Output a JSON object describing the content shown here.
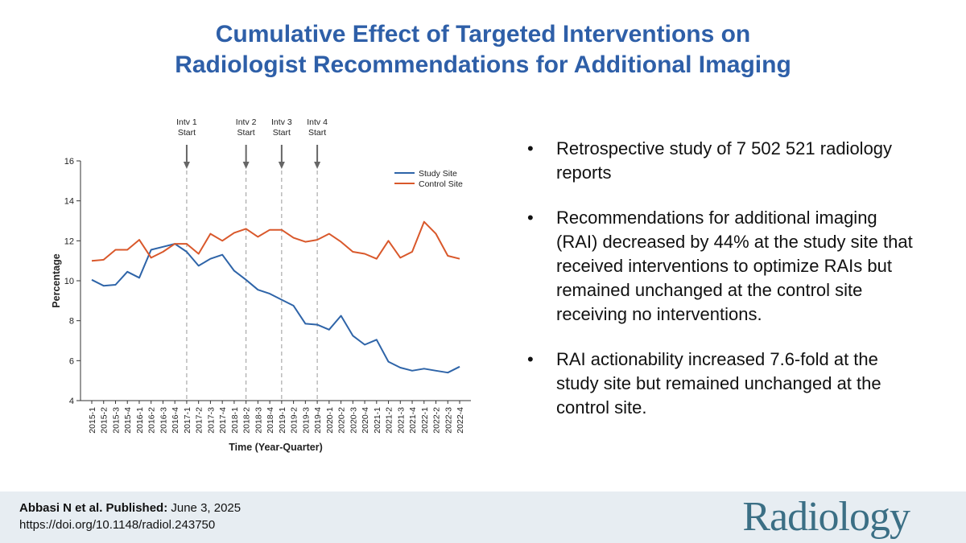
{
  "title": {
    "line1": "Cumulative Effect of Targeted Interventions on",
    "line2": "Radiologist Recommendations for Additional Imaging"
  },
  "chart_data": {
    "type": "line",
    "xlabel": "Time (Year-Quarter)",
    "ylabel": "Percentage",
    "ylim": [
      4,
      16
    ],
    "yticks": [
      4,
      6,
      8,
      10,
      12,
      14,
      16
    ],
    "categories": [
      "2015-1",
      "2015-2",
      "2015-3",
      "2015-4",
      "2016-1",
      "2016-2",
      "2016-3",
      "2016-4",
      "2017-1",
      "2017-2",
      "2017-3",
      "2017-4",
      "2018-1",
      "2018-2",
      "2018-3",
      "2018-4",
      "2019-1",
      "2019-2",
      "2019-3",
      "2019-4",
      "2020-1",
      "2020-2",
      "2020-3",
      "2020-4",
      "2021-1",
      "2021-2",
      "2021-3",
      "2021-4",
      "2022-1",
      "2022-2",
      "2022-3",
      "2022-4"
    ],
    "series": [
      {
        "name": "Study Site",
        "color": "#2e64a8",
        "values": [
          10.05,
          9.75,
          9.8,
          10.45,
          10.15,
          11.55,
          11.7,
          11.85,
          11.45,
          10.75,
          11.1,
          11.3,
          10.5,
          10.05,
          9.55,
          9.35,
          9.05,
          8.75,
          7.85,
          7.8,
          7.55,
          8.25,
          7.25,
          6.8,
          7.05,
          5.95,
          5.65,
          5.5,
          5.6,
          5.5,
          5.4,
          5.7
        ]
      },
      {
        "name": "Control Site",
        "color": "#d9582b",
        "values": [
          11.0,
          11.05,
          11.55,
          11.55,
          12.05,
          11.15,
          11.45,
          11.85,
          11.85,
          11.35,
          12.35,
          12.0,
          12.4,
          12.6,
          12.2,
          12.55,
          12.55,
          12.15,
          11.95,
          12.05,
          12.35,
          11.95,
          11.45,
          11.35,
          11.1,
          12.0,
          11.15,
          11.45,
          12.95,
          12.35,
          11.25,
          11.1
        ]
      }
    ],
    "legend_position": "top-right",
    "annotations": [
      {
        "line1": "Intv 1",
        "line2": "Start",
        "at": "2017-1"
      },
      {
        "line1": "Intv 2",
        "line2": "Start",
        "at": "2018-2"
      },
      {
        "line1": "Intv 3",
        "line2": "Start",
        "at": "2019-1"
      },
      {
        "line1": "Intv 4",
        "line2": "Start",
        "at": "2019-4"
      }
    ]
  },
  "bullets": [
    {
      "symbol": "•",
      "text": "Retrospective study of 7 502 521 radiology reports"
    },
    {
      "symbol": "•",
      "text": "Recommendations for additional imaging (RAI) decreased by 44% at the study site that received interventions to optimize RAIs but remained unchanged at the control site receiving no interventions."
    },
    {
      "symbol": "•",
      "text": "RAI actionability increased 7.6-fold at the study site but remained unchanged at the control site."
    }
  ],
  "footer": {
    "authors": "Abbasi N et al. Published:",
    "date": " June 3, 2025",
    "doi": "https://doi.org/10.1148/radiol.243750",
    "logo": "Radiology"
  }
}
